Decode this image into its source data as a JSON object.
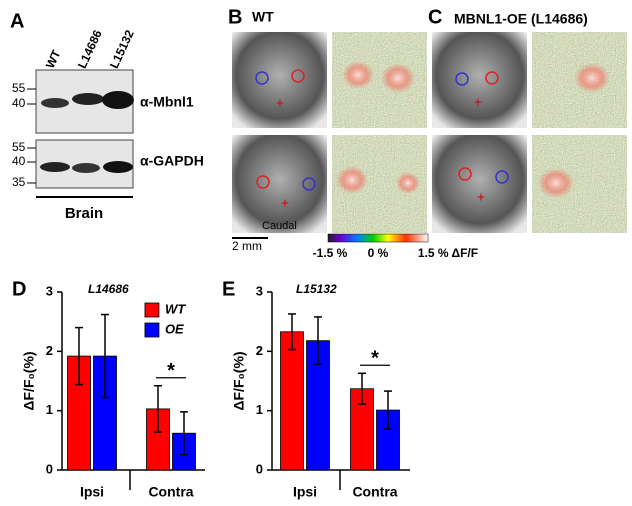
{
  "panel_a": {
    "label": "A",
    "lanes": [
      "WT",
      "L14686",
      "L15132"
    ],
    "markers_top": [
      55,
      40
    ],
    "markers_bottom": [
      55,
      40,
      35
    ],
    "bands": [
      "α-Mbnl1",
      "α-GAPDH"
    ],
    "tissue": "Brain"
  },
  "panel_b": {
    "label": "B",
    "title": "WT",
    "annotation": "Caudal",
    "scale_bar": "2 mm"
  },
  "panel_c": {
    "label": "C",
    "title": "MBNL1-OE (L14686)"
  },
  "colorbar": {
    "labels": [
      "-1.5 %",
      "0 %",
      "1.5 % ΔF/F"
    ]
  },
  "chart_data": [
    {
      "type": "bar",
      "panel": "D",
      "title": "L14686",
      "y_label": "ΔF/F₀(%)",
      "categories": [
        "Ipsi",
        "Contra"
      ],
      "series": [
        {
          "name": "WT",
          "color": "#ff0000",
          "values": [
            1.92,
            1.03
          ],
          "errors": [
            0.48,
            0.39
          ]
        },
        {
          "name": "OE",
          "color": "#0000ff",
          "values": [
            1.92,
            0.62
          ],
          "errors": [
            0.7,
            0.36
          ]
        }
      ],
      "ylim": [
        0,
        3
      ],
      "yticks": [
        0,
        1,
        2,
        3
      ],
      "legend": "upper right",
      "annotation": "*"
    },
    {
      "type": "bar",
      "panel": "E",
      "title": "L15132",
      "y_label": "ΔF/F₀(%)",
      "categories": [
        "Ipsi",
        "Contra"
      ],
      "series": [
        {
          "name": "WT",
          "color": "#ff0000",
          "values": [
            2.33,
            1.37
          ],
          "errors": [
            0.3,
            0.26
          ]
        },
        {
          "name": "OE",
          "color": "#0000ff",
          "values": [
            2.18,
            1.01
          ],
          "errors": [
            0.4,
            0.32
          ]
        }
      ],
      "ylim": [
        0,
        3
      ],
      "yticks": [
        0,
        1,
        2,
        3
      ],
      "annotation": "*"
    }
  ]
}
